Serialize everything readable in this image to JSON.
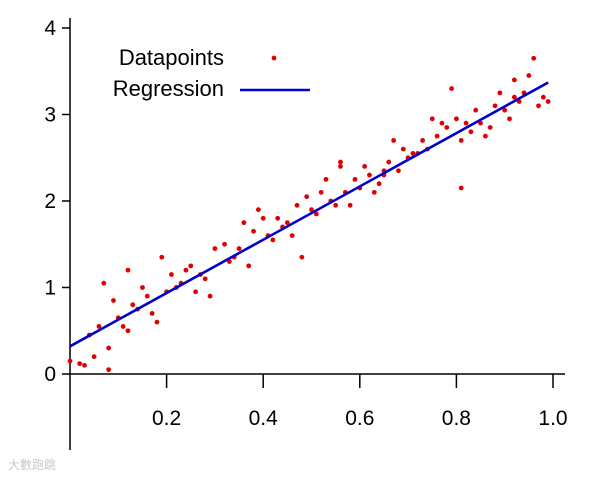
{
  "chart_data": {
    "type": "scatter",
    "title": "",
    "xlabel": "",
    "ylabel": "",
    "xlim": [
      0.0,
      1.0
    ],
    "ylim": [
      0,
      4
    ],
    "x_ticks": [
      "0.2",
      "0.4",
      "0.6",
      "0.8",
      "1.0"
    ],
    "y_ticks": [
      "0",
      "1",
      "2",
      "3",
      "4"
    ],
    "legend_position": "top-left",
    "grid": false,
    "series": [
      {
        "name": "Datapoints",
        "kind": "points",
        "color": "#e00000",
        "x": [
          0.0,
          0.02,
          0.04,
          0.06,
          0.07,
          0.08,
          0.09,
          0.1,
          0.12,
          0.13,
          0.14,
          0.15,
          0.17,
          0.19,
          0.2,
          0.21,
          0.23,
          0.25,
          0.26,
          0.28,
          0.3,
          0.32,
          0.34,
          0.36,
          0.38,
          0.39,
          0.41,
          0.43,
          0.45,
          0.47,
          0.48,
          0.5,
          0.52,
          0.54,
          0.56,
          0.57,
          0.58,
          0.6,
          0.62,
          0.64,
          0.66,
          0.68,
          0.7,
          0.72,
          0.74,
          0.76,
          0.78,
          0.8,
          0.81,
          0.83,
          0.85,
          0.87,
          0.88,
          0.9,
          0.91,
          0.92,
          0.93,
          0.94,
          0.95,
          0.97,
          0.99,
          0.03,
          0.05,
          0.11,
          0.16,
          0.18,
          0.22,
          0.27,
          0.29,
          0.35,
          0.37,
          0.4,
          0.42,
          0.46,
          0.49,
          0.51,
          0.53,
          0.55,
          0.59,
          0.61,
          0.63,
          0.65,
          0.67,
          0.69,
          0.71,
          0.73,
          0.75,
          0.77,
          0.79,
          0.82,
          0.84,
          0.86,
          0.89,
          0.96,
          0.98,
          0.08,
          0.12,
          0.24,
          0.33,
          0.44,
          0.56,
          0.65,
          0.81,
          0.92
        ],
        "y": [
          0.15,
          0.12,
          0.45,
          0.55,
          1.05,
          0.3,
          0.85,
          0.65,
          1.2,
          0.8,
          0.75,
          1.0,
          0.7,
          1.35,
          0.95,
          1.15,
          1.05,
          1.25,
          0.95,
          1.1,
          1.45,
          1.5,
          1.35,
          1.75,
          1.65,
          1.9,
          1.6,
          1.8,
          1.75,
          1.95,
          1.35,
          1.9,
          2.1,
          2.0,
          2.45,
          2.1,
          1.95,
          2.15,
          2.3,
          2.2,
          2.45,
          2.35,
          2.5,
          2.55,
          2.6,
          2.75,
          2.85,
          2.95,
          2.15,
          2.8,
          2.9,
          2.85,
          3.1,
          3.05,
          2.95,
          3.2,
          3.15,
          3.25,
          3.45,
          3.1,
          3.15,
          0.1,
          0.2,
          0.55,
          0.9,
          0.6,
          1.0,
          1.15,
          0.9,
          1.45,
          1.25,
          1.8,
          1.55,
          1.6,
          2.05,
          1.85,
          2.25,
          1.95,
          2.25,
          2.4,
          2.1,
          2.35,
          2.7,
          2.6,
          2.55,
          2.7,
          2.95,
          2.9,
          3.3,
          2.9,
          3.05,
          2.75,
          3.25,
          3.65,
          3.2,
          0.05,
          0.5,
          1.2,
          1.3,
          1.7,
          2.4,
          2.3,
          2.7,
          3.4
        ]
      },
      {
        "name": "Regression",
        "kind": "line",
        "color": "#0000cc",
        "x": [
          0.0,
          0.99
        ],
        "y": [
          0.32,
          3.37
        ]
      }
    ]
  },
  "watermark": "大數跑跳"
}
